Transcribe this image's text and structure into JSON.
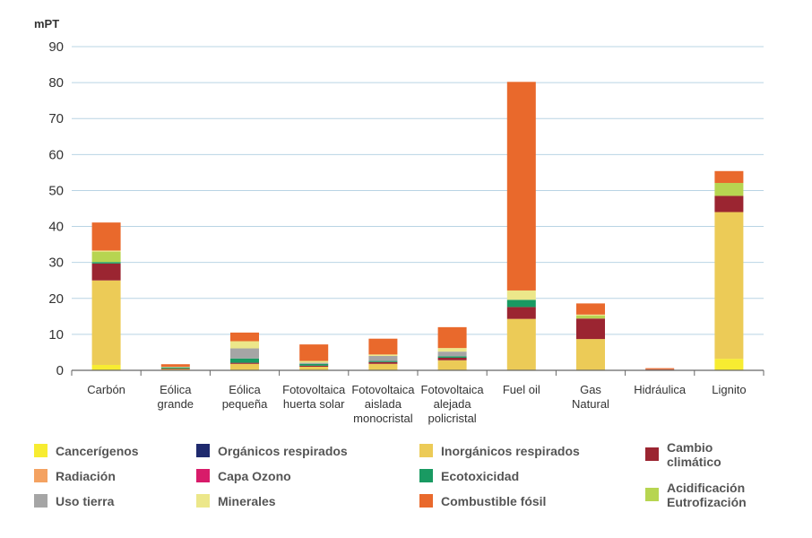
{
  "chart_data": {
    "type": "bar",
    "stacked": true,
    "ylabel": "mPT",
    "ylim": [
      0,
      90
    ],
    "yticks": [
      0,
      10,
      20,
      30,
      40,
      50,
      60,
      70,
      80,
      90
    ],
    "grid": true,
    "legend_position": "bottom",
    "categories": [
      [
        "Carbón"
      ],
      [
        "Eólica",
        "grande"
      ],
      [
        "Eólica",
        "pequeña"
      ],
      [
        "Fotovoltaica",
        "huerta solar"
      ],
      [
        "Fotovoltaica",
        "aislada",
        "monocristal"
      ],
      [
        "Fotovoltaica",
        "alejada",
        "policristal"
      ],
      [
        "Fuel oil"
      ],
      [
        "Gas",
        "Natural"
      ],
      [
        "Hidráulica"
      ],
      [
        "Lignito"
      ]
    ],
    "series": [
      {
        "name": [
          "Cancerígenos"
        ],
        "color": "#f7ec31",
        "values": [
          1.5,
          0,
          0,
          0,
          0,
          0,
          0,
          0,
          0,
          3.2
        ]
      },
      {
        "name": [
          "Orgánicos respirados"
        ],
        "color": "#1f2a6e",
        "values": [
          0,
          0,
          0,
          0,
          0,
          0,
          0,
          0,
          0,
          0
        ]
      },
      {
        "name": [
          "Inorgánicos respirados"
        ],
        "color": "#eccb57",
        "values": [
          23.5,
          0.4,
          1.8,
          1.0,
          1.8,
          2.8,
          14.3,
          8.7,
          0.2,
          40.8
        ]
      },
      {
        "name": [
          "Cambio",
          "climático"
        ],
        "color": "#9b2531",
        "values": [
          4.7,
          0.1,
          0.3,
          0.3,
          0.5,
          0.7,
          3.3,
          5.7,
          0.1,
          4.5
        ]
      },
      {
        "name": [
          "Radiación"
        ],
        "color": "#f4a261",
        "values": [
          0,
          0,
          0,
          0,
          0,
          0,
          0,
          0,
          0,
          0
        ]
      },
      {
        "name": [
          "Capa Ozono"
        ],
        "color": "#d81b6a",
        "values": [
          0,
          0,
          0,
          0,
          0,
          0,
          0,
          0,
          0,
          0
        ]
      },
      {
        "name": [
          "Ecotoxicidad"
        ],
        "color": "#199a62",
        "values": [
          0.4,
          0.3,
          1.2,
          0.5,
          0.3,
          0.4,
          2.0,
          0,
          0,
          0
        ]
      },
      {
        "name": [
          "Acidificación",
          "Eutrofización"
        ],
        "color": "#b7d551",
        "values": [
          2.9,
          0,
          0,
          0,
          0,
          0,
          0,
          0.8,
          0,
          3.6
        ]
      },
      {
        "name": [
          "Uso tierra"
        ],
        "color": "#a5a5a5",
        "values": [
          0,
          0.1,
          2.8,
          0.3,
          1.4,
          1.3,
          0,
          0,
          0,
          0
        ]
      },
      {
        "name": [
          "Minerales"
        ],
        "color": "#ece78a",
        "values": [
          0.3,
          0.1,
          2.0,
          0.5,
          0.4,
          1.0,
          2.6,
          0.3,
          0,
          0
        ]
      },
      {
        "name": [
          "Combustible fósil"
        ],
        "color": "#e9692c",
        "values": [
          7.8,
          0.7,
          2.4,
          4.6,
          4.4,
          5.8,
          58.0,
          3.1,
          0.3,
          3.3
        ]
      }
    ],
    "legend_order": [
      0,
      1,
      2,
      3,
      4,
      5,
      6,
      7,
      8,
      9,
      10
    ]
  }
}
